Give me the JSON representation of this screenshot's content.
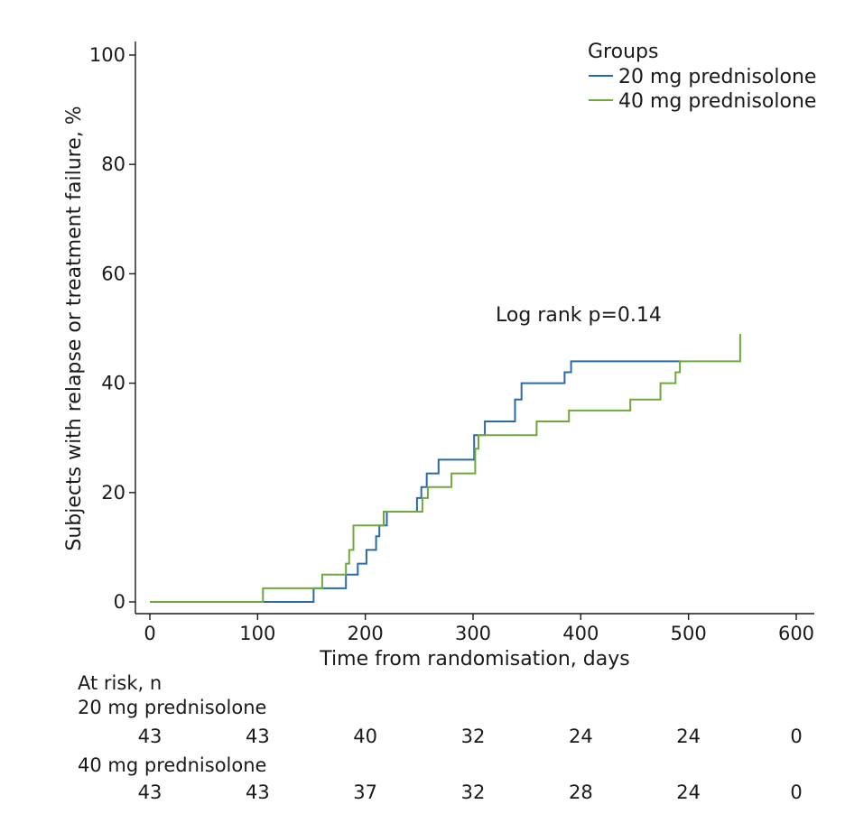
{
  "chart_data": {
    "type": "line",
    "xlabel": "Time from randomisation, days",
    "ylabel": "Subjects with relapse or treatment failure, %",
    "xlim": [
      0,
      600
    ],
    "ylim": [
      0,
      100
    ],
    "x_ticks": [
      0,
      100,
      200,
      300,
      400,
      500,
      600
    ],
    "y_ticks": [
      0,
      20,
      40,
      60,
      80,
      100
    ],
    "grid": false,
    "legend": {
      "title": "Groups",
      "position": "top-right"
    },
    "annotation": "Log rank p=0.14",
    "step": true,
    "series": [
      {
        "name": "20 mg prednisolone",
        "color": "#2b6aa6",
        "points": [
          [
            0,
            0
          ],
          [
            152,
            0
          ],
          [
            152,
            2.5
          ],
          [
            182,
            2.5
          ],
          [
            182,
            5
          ],
          [
            193,
            5
          ],
          [
            193,
            7
          ],
          [
            201,
            7
          ],
          [
            201,
            9.5
          ],
          [
            210,
            9.5
          ],
          [
            210,
            12
          ],
          [
            213,
            12
          ],
          [
            213,
            14
          ],
          [
            220,
            14
          ],
          [
            220,
            16.5
          ],
          [
            248,
            16.5
          ],
          [
            248,
            19
          ],
          [
            252,
            19
          ],
          [
            252,
            21
          ],
          [
            257,
            21
          ],
          [
            257,
            23.5
          ],
          [
            268,
            23.5
          ],
          [
            268,
            26
          ],
          [
            301,
            26
          ],
          [
            301,
            30.5
          ],
          [
            311,
            30.5
          ],
          [
            311,
            33
          ],
          [
            339,
            33
          ],
          [
            339,
            37
          ],
          [
            345,
            37
          ],
          [
            345,
            40
          ],
          [
            385,
            40
          ],
          [
            385,
            42
          ],
          [
            391,
            42
          ],
          [
            391,
            44
          ],
          [
            493,
            44
          ]
        ]
      },
      {
        "name": "40 mg prednisolone",
        "color": "#6fa83f",
        "points": [
          [
            0,
            0
          ],
          [
            105,
            0
          ],
          [
            105,
            2.5
          ],
          [
            160,
            2.5
          ],
          [
            160,
            5
          ],
          [
            182,
            5
          ],
          [
            182,
            7
          ],
          [
            185,
            7
          ],
          [
            185,
            9.5
          ],
          [
            189,
            9.5
          ],
          [
            189,
            14
          ],
          [
            217,
            14
          ],
          [
            217,
            16.5
          ],
          [
            253,
            16.5
          ],
          [
            253,
            19
          ],
          [
            258,
            19
          ],
          [
            258,
            21
          ],
          [
            280,
            21
          ],
          [
            280,
            23.5
          ],
          [
            302,
            23.5
          ],
          [
            302,
            28
          ],
          [
            305,
            28
          ],
          [
            305,
            30.5
          ],
          [
            359,
            30.5
          ],
          [
            359,
            33
          ],
          [
            389,
            33
          ],
          [
            389,
            35
          ],
          [
            446,
            35
          ],
          [
            446,
            37
          ],
          [
            474,
            37
          ],
          [
            474,
            40
          ],
          [
            488,
            40
          ],
          [
            488,
            42
          ],
          [
            492,
            42
          ],
          [
            492,
            44
          ],
          [
            548,
            44
          ],
          [
            548,
            49
          ]
        ]
      }
    ],
    "at_risk": {
      "title": "At risk, n",
      "times": [
        0,
        100,
        200,
        300,
        400,
        500,
        600
      ],
      "rows": [
        {
          "name": "20 mg prednisolone",
          "counts": [
            "43",
            "43",
            "40",
            "32",
            "24",
            "24",
            "0"
          ]
        },
        {
          "name": "40 mg prednisolone",
          "counts": [
            "43",
            "43",
            "37",
            "32",
            "28",
            "24",
            "0"
          ]
        }
      ]
    }
  }
}
